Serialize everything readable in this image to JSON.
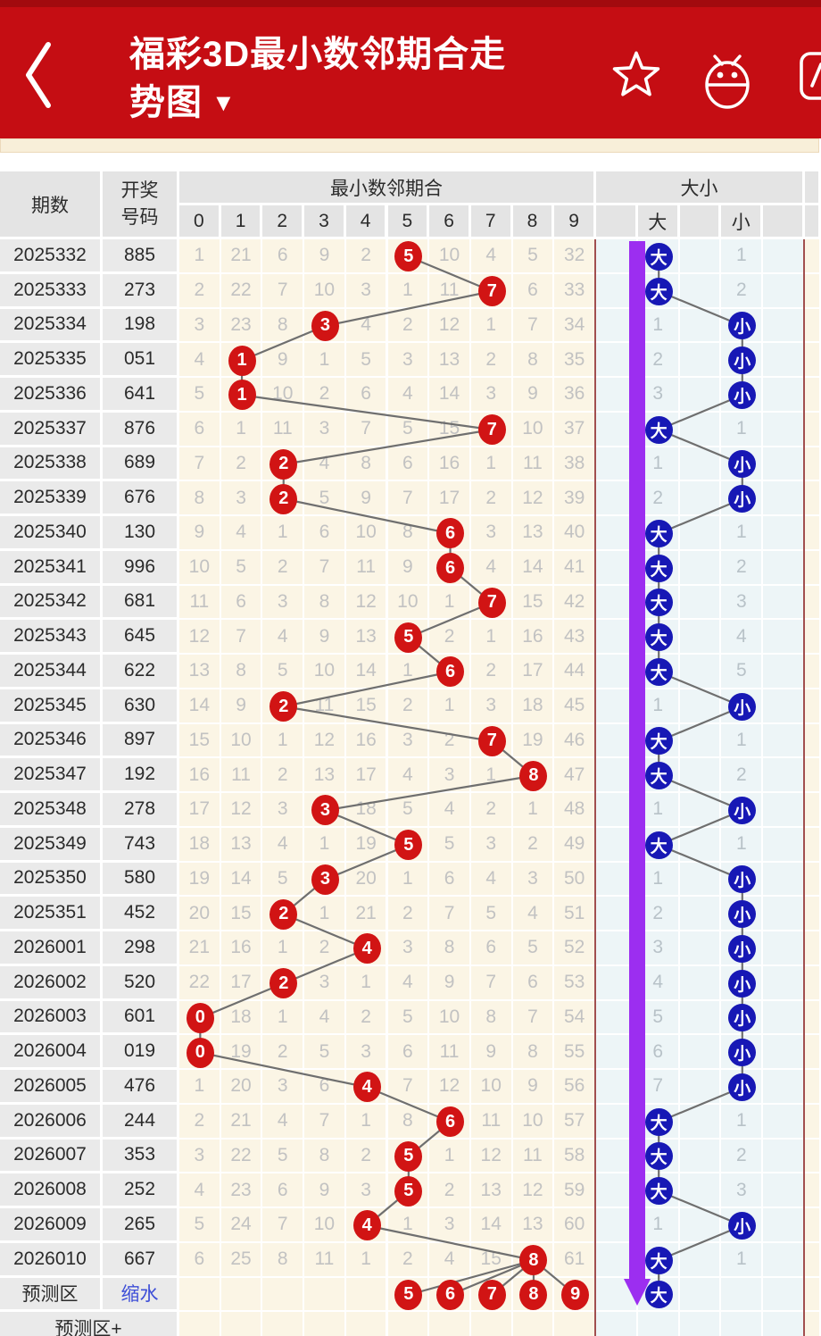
{
  "appbar": {
    "title": "福彩3D最小数邻期合走势图",
    "dropdown": "▼",
    "icons": [
      "back-icon",
      "star-icon",
      "robot-icon",
      "more-icon"
    ]
  },
  "colors": {
    "appbar_red": "#c50d13",
    "hit_circle_red": "#d11414",
    "daxiao_circle_blue": "#1718b5",
    "trend_arrow_purple": "#9c2ef0",
    "link_blue": "#3d4ed7"
  },
  "table": {
    "headers": {
      "period": "期数",
      "draw_number": "开奖号码",
      "digits_section": "最小数邻期合",
      "digit_cols": [
        "0",
        "1",
        "2",
        "3",
        "4",
        "5",
        "6",
        "7",
        "8",
        "9"
      ],
      "daxiao_section": "大小",
      "big": "大",
      "small": "小"
    },
    "rows": [
      {
        "period": "2025332",
        "number": "885",
        "cells": [
          "1",
          "21",
          "6",
          "9",
          "2",
          "5",
          "10",
          "4",
          "5",
          "32"
        ],
        "hit": 5,
        "dx": "大",
        "dxm": "1"
      },
      {
        "period": "2025333",
        "number": "273",
        "cells": [
          "2",
          "22",
          "7",
          "10",
          "3",
          "1",
          "11",
          "7",
          "6",
          "33"
        ],
        "hit": 7,
        "dx": "大",
        "dxm": "2"
      },
      {
        "period": "2025334",
        "number": "198",
        "cells": [
          "3",
          "23",
          "8",
          "3",
          "4",
          "2",
          "12",
          "1",
          "7",
          "34"
        ],
        "hit": 3,
        "dx": "小",
        "dxm": "1"
      },
      {
        "period": "2025335",
        "number": "051",
        "cells": [
          "4",
          "1",
          "9",
          "1",
          "5",
          "3",
          "13",
          "2",
          "8",
          "35"
        ],
        "hit": 1,
        "dx": "小",
        "dxm": "2"
      },
      {
        "period": "2025336",
        "number": "641",
        "cells": [
          "5",
          "1",
          "10",
          "2",
          "6",
          "4",
          "14",
          "3",
          "9",
          "36"
        ],
        "hit": 1,
        "dx": "小",
        "dxm": "3"
      },
      {
        "period": "2025337",
        "number": "876",
        "cells": [
          "6",
          "1",
          "11",
          "3",
          "7",
          "5",
          "15",
          "7",
          "10",
          "37"
        ],
        "hit": 7,
        "dx": "大",
        "dxm": "1"
      },
      {
        "period": "2025338",
        "number": "689",
        "cells": [
          "7",
          "2",
          "2",
          "4",
          "8",
          "6",
          "16",
          "1",
          "11",
          "38"
        ],
        "hit": 2,
        "dx": "小",
        "dxm": "1"
      },
      {
        "period": "2025339",
        "number": "676",
        "cells": [
          "8",
          "3",
          "2",
          "5",
          "9",
          "7",
          "17",
          "2",
          "12",
          "39"
        ],
        "hit": 2,
        "dx": "小",
        "dxm": "2"
      },
      {
        "period": "2025340",
        "number": "130",
        "cells": [
          "9",
          "4",
          "1",
          "6",
          "10",
          "8",
          "6",
          "3",
          "13",
          "40"
        ],
        "hit": 6,
        "dx": "大",
        "dxm": "1"
      },
      {
        "period": "2025341",
        "number": "996",
        "cells": [
          "10",
          "5",
          "2",
          "7",
          "11",
          "9",
          "6",
          "4",
          "14",
          "41"
        ],
        "hit": 6,
        "dx": "大",
        "dxm": "2"
      },
      {
        "period": "2025342",
        "number": "681",
        "cells": [
          "11",
          "6",
          "3",
          "8",
          "12",
          "10",
          "1",
          "7",
          "15",
          "42"
        ],
        "hit": 7,
        "dx": "大",
        "dxm": "3"
      },
      {
        "period": "2025343",
        "number": "645",
        "cells": [
          "12",
          "7",
          "4",
          "9",
          "13",
          "5",
          "2",
          "1",
          "16",
          "43"
        ],
        "hit": 5,
        "dx": "大",
        "dxm": "4"
      },
      {
        "period": "2025344",
        "number": "622",
        "cells": [
          "13",
          "8",
          "5",
          "10",
          "14",
          "1",
          "6",
          "2",
          "17",
          "44"
        ],
        "hit": 6,
        "dx": "大",
        "dxm": "5"
      },
      {
        "period": "2025345",
        "number": "630",
        "cells": [
          "14",
          "9",
          "2",
          "11",
          "15",
          "2",
          "1",
          "3",
          "18",
          "45"
        ],
        "hit": 2,
        "dx": "小",
        "dxm": "1"
      },
      {
        "period": "2025346",
        "number": "897",
        "cells": [
          "15",
          "10",
          "1",
          "12",
          "16",
          "3",
          "2",
          "7",
          "19",
          "46"
        ],
        "hit": 7,
        "dx": "大",
        "dxm": "1"
      },
      {
        "period": "2025347",
        "number": "192",
        "cells": [
          "16",
          "11",
          "2",
          "13",
          "17",
          "4",
          "3",
          "1",
          "8",
          "47"
        ],
        "hit": 8,
        "dx": "大",
        "dxm": "2"
      },
      {
        "period": "2025348",
        "number": "278",
        "cells": [
          "17",
          "12",
          "3",
          "3",
          "18",
          "5",
          "4",
          "2",
          "1",
          "48"
        ],
        "hit": 3,
        "dx": "小",
        "dxm": "1"
      },
      {
        "period": "2025349",
        "number": "743",
        "cells": [
          "18",
          "13",
          "4",
          "1",
          "19",
          "5",
          "5",
          "3",
          "2",
          "49"
        ],
        "hit": 5,
        "dx": "大",
        "dxm": "1"
      },
      {
        "period": "2025350",
        "number": "580",
        "cells": [
          "19",
          "14",
          "5",
          "3",
          "20",
          "1",
          "6",
          "4",
          "3",
          "50"
        ],
        "hit": 3,
        "dx": "小",
        "dxm": "1"
      },
      {
        "period": "2025351",
        "number": "452",
        "cells": [
          "20",
          "15",
          "2",
          "1",
          "21",
          "2",
          "7",
          "5",
          "4",
          "51"
        ],
        "hit": 2,
        "dx": "小",
        "dxm": "2"
      },
      {
        "period": "2026001",
        "number": "298",
        "cells": [
          "21",
          "16",
          "1",
          "2",
          "4",
          "3",
          "8",
          "6",
          "5",
          "52"
        ],
        "hit": 4,
        "dx": "小",
        "dxm": "3"
      },
      {
        "period": "2026002",
        "number": "520",
        "cells": [
          "22",
          "17",
          "2",
          "3",
          "1",
          "4",
          "9",
          "7",
          "6",
          "53"
        ],
        "hit": 2,
        "dx": "小",
        "dxm": "4"
      },
      {
        "period": "2026003",
        "number": "601",
        "cells": [
          "0",
          "18",
          "1",
          "4",
          "2",
          "5",
          "10",
          "8",
          "7",
          "54"
        ],
        "hit": 0,
        "dx": "小",
        "dxm": "5"
      },
      {
        "period": "2026004",
        "number": "019",
        "cells": [
          "0",
          "19",
          "2",
          "5",
          "3",
          "6",
          "11",
          "9",
          "8",
          "55"
        ],
        "hit": 0,
        "dx": "小",
        "dxm": "6"
      },
      {
        "period": "2026005",
        "number": "476",
        "cells": [
          "1",
          "20",
          "3",
          "6",
          "4",
          "7",
          "12",
          "10",
          "9",
          "56"
        ],
        "hit": 4,
        "dx": "小",
        "dxm": "7"
      },
      {
        "period": "2026006",
        "number": "244",
        "cells": [
          "2",
          "21",
          "4",
          "7",
          "1",
          "8",
          "6",
          "11",
          "10",
          "57"
        ],
        "hit": 6,
        "dx": "大",
        "dxm": "1"
      },
      {
        "period": "2026007",
        "number": "353",
        "cells": [
          "3",
          "22",
          "5",
          "8",
          "2",
          "5",
          "1",
          "12",
          "11",
          "58"
        ],
        "hit": 5,
        "dx": "大",
        "dxm": "2"
      },
      {
        "period": "2026008",
        "number": "252",
        "cells": [
          "4",
          "23",
          "6",
          "9",
          "3",
          "5",
          "2",
          "13",
          "12",
          "59"
        ],
        "hit": 5,
        "dx": "大",
        "dxm": "3"
      },
      {
        "period": "2026009",
        "number": "265",
        "cells": [
          "5",
          "24",
          "7",
          "10",
          "4",
          "1",
          "3",
          "14",
          "13",
          "60"
        ],
        "hit": 4,
        "dx": "小",
        "dxm": "1"
      },
      {
        "period": "2026010",
        "number": "667",
        "cells": [
          "6",
          "25",
          "8",
          "11",
          "1",
          "2",
          "4",
          "15",
          "8",
          "61"
        ],
        "hit": 8,
        "dx": "大",
        "dxm": "1"
      }
    ],
    "prediction": {
      "label": "预测区",
      "link": "缩水",
      "circles": [
        "5",
        "6",
        "7",
        "8",
        "9"
      ],
      "circle_cols": [
        5,
        6,
        7,
        8,
        9
      ],
      "dx": "大"
    },
    "extra_row_label": "预测区+"
  }
}
